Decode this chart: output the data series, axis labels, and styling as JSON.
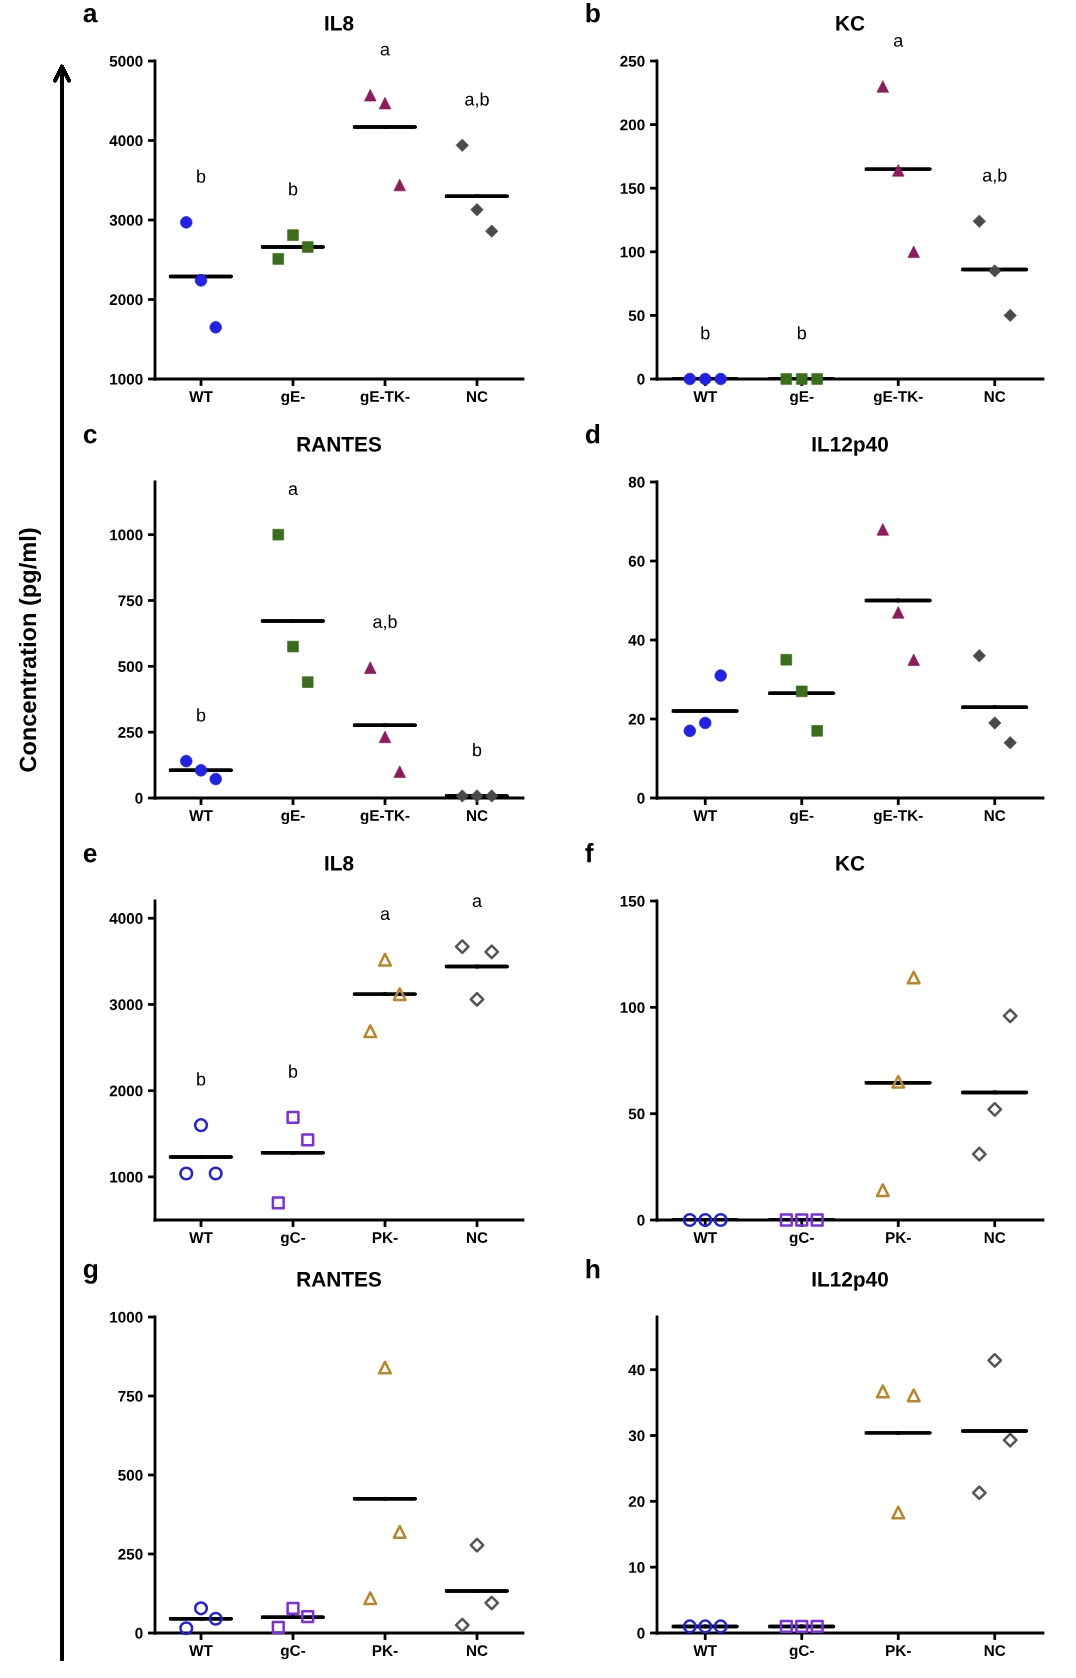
{
  "chart_data": [
    {
      "type": "scatter",
      "title": "IL8",
      "categories": [
        "WT",
        "gE-",
        "gE-TK-",
        "NC"
      ],
      "ylim": [
        1000,
        5000
      ],
      "yticks": [
        1000,
        2000,
        3000,
        4000,
        5000
      ],
      "annotations": [
        "a",
        "b",
        "b",
        "a",
        "a,b"
      ],
      "series": [
        {
          "x": [
            "WT",
            "WT",
            "WT"
          ],
          "values": [
            2970,
            2240,
            1650
          ],
          "color": "#2222e6",
          "marker": "circle"
        },
        {
          "x": [
            "gE-",
            "gE-",
            "gE-"
          ],
          "values": [
            2510,
            2810,
            2660
          ],
          "color": "#3b6e1c",
          "marker": "square"
        },
        {
          "x": [
            "gE-TK-",
            "gE-TK-",
            "gE-TK-"
          ],
          "values": [
            4570,
            4470,
            3440
          ],
          "color": "#8c1c5c",
          "marker": "triangle"
        },
        {
          "x": [
            "NC",
            "NC",
            "NC"
          ],
          "values": [
            3940,
            3130,
            2860
          ],
          "color": "#4a4a4a",
          "marker": "diamond"
        },
        {
          "type": "box",
          "color": "#000000",
          "boxes": [
            {
              "low": 2290,
              "q1": 2290,
              "median": 2290,
              "q3": 2290,
              "high": 2290
            },
            {
              "low": 2660,
              "q1": 2660,
              "median": 2660,
              "q3": 2660,
              "high": 2660
            },
            {
              "low": 4170,
              "q1": 4170,
              "median": 4170,
              "q3": 4170,
              "high": 4170
            },
            {
              "low": 3300,
              "q1": 3300,
              "median": 3300,
              "q3": 3300,
              "high": 3300
            }
          ]
        }
      ]
    },
    {
      "type": "scatter",
      "title": "KC",
      "categories": [
        "WT",
        "gE-",
        "gE-TK-",
        "NC"
      ],
      "ylim": [
        0,
        250
      ],
      "yticks": [
        0,
        50,
        100,
        150,
        200,
        250
      ],
      "annotations": [
        "b",
        "b",
        "b",
        "a",
        "a,b"
      ],
      "series": [
        {
          "x": [
            "WT",
            "WT",
            "WT"
          ],
          "values": [
            0,
            0,
            0
          ],
          "color": "#2222e6",
          "marker": "circle"
        },
        {
          "x": [
            "gE-",
            "gE-",
            "gE-"
          ],
          "values": [
            0,
            0,
            0
          ],
          "color": "#3b6e1c",
          "marker": "square"
        },
        {
          "x": [
            "gE-TK-",
            "gE-TK-",
            "gE-TK-"
          ],
          "values": [
            230,
            164,
            100
          ],
          "color": "#8c1c5c",
          "marker": "triangle"
        },
        {
          "x": [
            "NC",
            "NC",
            "NC"
          ],
          "values": [
            124,
            85,
            50
          ],
          "color": "#4a4a4a",
          "marker": "diamond"
        },
        {
          "type": "box",
          "color": "#000000",
          "boxes": [
            {
              "low": 0,
              "q1": 0,
              "median": 0,
              "q3": 0,
              "high": 0
            },
            {
              "low": 0,
              "q1": 0,
              "median": 0,
              "q3": 0,
              "high": 0
            },
            {
              "low": 165,
              "q1": 165,
              "median": 165,
              "q3": 165,
              "high": 165
            },
            {
              "low": 86,
              "q1": 86,
              "median": 86,
              "q3": 86,
              "high": 86
            }
          ]
        }
      ]
    },
    {
      "type": "scatter",
      "title": "RANTES",
      "ylabel": "Concentration (pg/ml)",
      "categories": [
        "WT",
        "gE-",
        "gE-TK-",
        "NC"
      ],
      "ylim": [
        0,
        1200
      ],
      "yticks": [
        0,
        250,
        500,
        750,
        1000
      ],
      "annotations": [
        "c",
        "b",
        "a",
        "a,b",
        "b"
      ],
      "series": [
        {
          "x": [
            "WT",
            "WT",
            "WT"
          ],
          "values": [
            140,
            105,
            72
          ],
          "color": "#2222e6",
          "marker": "circle"
        },
        {
          "x": [
            "gE-",
            "gE-",
            "gE-"
          ],
          "values": [
            1000,
            575,
            440
          ],
          "color": "#3b6e1c",
          "marker": "square"
        },
        {
          "x": [
            "gE-TK-",
            "gE-TK-",
            "gE-TK-"
          ],
          "values": [
            495,
            232,
            100
          ],
          "color": "#8c1c5c",
          "marker": "triangle"
        },
        {
          "x": [
            "NC",
            "NC",
            "NC"
          ],
          "values": [
            8,
            8,
            8
          ],
          "color": "#4a4a4a",
          "marker": "diamond"
        },
        {
          "type": "box",
          "color": "#000000",
          "boxes": [
            {
              "low": 105,
              "q1": 105,
              "median": 105,
              "q3": 105,
              "high": 105
            },
            {
              "low": 672,
              "q1": 672,
              "median": 672,
              "q3": 672,
              "high": 672
            },
            {
              "low": 276,
              "q1": 276,
              "median": 276,
              "q3": 276,
              "high": 276
            },
            {
              "low": 8,
              "q1": 8,
              "median": 8,
              "q3": 8,
              "high": 8
            }
          ]
        }
      ]
    },
    {
      "type": "scatter",
      "title": "IL12p40",
      "categories": [
        "WT",
        "gE-",
        "gE-TK-",
        "NC"
      ],
      "ylim": [
        0,
        80
      ],
      "yticks": [
        0,
        20,
        40,
        60,
        80
      ],
      "annotations": [
        "d"
      ],
      "series": [
        {
          "x": [
            "WT",
            "WT",
            "WT"
          ],
          "values": [
            17,
            19,
            31
          ],
          "color": "#2222e6",
          "marker": "circle"
        },
        {
          "x": [
            "gE-",
            "gE-",
            "gE-"
          ],
          "values": [
            35,
            27,
            17
          ],
          "color": "#3b6e1c",
          "marker": "square"
        },
        {
          "x": [
            "gE-TK-",
            "gE-TK-",
            "gE-TK-"
          ],
          "values": [
            68,
            47,
            35
          ],
          "color": "#8c1c5c",
          "marker": "triangle"
        },
        {
          "x": [
            "NC",
            "NC",
            "NC"
          ],
          "values": [
            36,
            19,
            14
          ],
          "color": "#4a4a4a",
          "marker": "diamond"
        },
        {
          "type": "box",
          "color": "#000000",
          "boxes": [
            {
              "low": 22,
              "q1": 22,
              "median": 22,
              "q3": 22,
              "high": 22
            },
            {
              "low": 26.5,
              "q1": 26.5,
              "median": 26.5,
              "q3": 26.5,
              "high": 26.5
            },
            {
              "low": 50,
              "q1": 50,
              "median": 50,
              "q3": 50,
              "high": 50
            },
            {
              "low": 23,
              "q1": 23,
              "median": 23,
              "q3": 23,
              "high": 23
            }
          ]
        }
      ]
    },
    {
      "type": "scatter",
      "title": "IL8",
      "categories": [
        "WT",
        "gC-",
        "PK-",
        "NC"
      ],
      "ylim": [
        500,
        4200
      ],
      "yticks": [
        1000,
        2000,
        3000,
        4000
      ],
      "annotations": [
        "e",
        "b",
        "b",
        "a",
        "a"
      ],
      "series": [
        {
          "x": [
            "WT",
            "WT",
            "WT"
          ],
          "values": [
            1040,
            1600,
            1040
          ],
          "color": "#2222dd",
          "marker": "circle"
        },
        {
          "x": [
            "gC-",
            "gC-",
            "gC-"
          ],
          "values": [
            700,
            1690,
            1430
          ],
          "color": "#7b2ee6",
          "marker": "square"
        },
        {
          "x": [
            "PK-",
            "PK-",
            "PK-"
          ],
          "values": [
            2690,
            3520,
            3120
          ],
          "color": "#b8862b",
          "marker": "triangle"
        },
        {
          "x": [
            "NC",
            "NC",
            "NC"
          ],
          "values": [
            3670,
            3060,
            3610
          ],
          "color": "#555555",
          "marker": "diamond"
        },
        {
          "type": "box",
          "color": "#000000",
          "boxes": [
            {
              "low": 1230,
              "q1": 1230,
              "median": 1230,
              "q3": 1230,
              "high": 1230
            },
            {
              "low": 1280,
              "q1": 1280,
              "median": 1280,
              "q3": 1280,
              "high": 1280
            },
            {
              "low": 3120,
              "q1": 3120,
              "median": 3120,
              "q3": 3120,
              "high": 3120
            },
            {
              "low": 3440,
              "q1": 3440,
              "median": 3440,
              "q3": 3440,
              "high": 3440
            }
          ]
        }
      ]
    },
    {
      "type": "scatter",
      "title": "KC",
      "categories": [
        "WT",
        "gC-",
        "PK-",
        "NC"
      ],
      "ylim": [
        0,
        150
      ],
      "yticks": [
        0,
        50,
        100,
        150
      ],
      "annotations": [
        "f"
      ],
      "series": [
        {
          "x": [
            "WT",
            "WT",
            "WT"
          ],
          "values": [
            0,
            0,
            0
          ],
          "color": "#2222dd",
          "marker": "circle"
        },
        {
          "x": [
            "gC-",
            "gC-",
            "gC-"
          ],
          "values": [
            0,
            0,
            0
          ],
          "color": "#7b2ee6",
          "marker": "square"
        },
        {
          "x": [
            "PK-",
            "PK-",
            "PK-"
          ],
          "values": [
            14,
            65,
            114
          ],
          "color": "#b8862b",
          "marker": "triangle"
        },
        {
          "x": [
            "NC",
            "NC",
            "NC"
          ],
          "values": [
            31,
            52,
            96
          ],
          "color": "#555555",
          "marker": "diamond"
        },
        {
          "type": "box",
          "color": "#000000",
          "boxes": [
            {
              "low": 0,
              "q1": 0,
              "median": 0,
              "q3": 0,
              "high": 0
            },
            {
              "low": 0,
              "q1": 0,
              "median": 0,
              "q3": 0,
              "high": 0
            },
            {
              "low": 64.5,
              "q1": 64.5,
              "median": 64.5,
              "q3": 64.5,
              "high": 64.5
            },
            {
              "low": 60,
              "q1": 60,
              "median": 60,
              "q3": 60,
              "high": 60
            }
          ]
        }
      ]
    },
    {
      "type": "scatter",
      "title": "RANTES",
      "categories": [
        "WT",
        "gC-",
        "PK-",
        "NC"
      ],
      "ylim": [
        0,
        1000
      ],
      "yticks": [
        0,
        250,
        500,
        750,
        1000
      ],
      "annotations": [
        "g"
      ],
      "series": [
        {
          "x": [
            "WT",
            "WT",
            "WT"
          ],
          "values": [
            15,
            78,
            45
          ],
          "color": "#2222dd",
          "marker": "circle"
        },
        {
          "x": [
            "gC-",
            "gC-",
            "gC-"
          ],
          "values": [
            18,
            78,
            52
          ],
          "color": "#7b2ee6",
          "marker": "square"
        },
        {
          "x": [
            "PK-",
            "PK-",
            "PK-"
          ],
          "values": [
            110,
            840,
            320
          ],
          "color": "#b8862b",
          "marker": "triangle"
        },
        {
          "x": [
            "NC",
            "NC",
            "NC"
          ],
          "values": [
            25,
            278,
            95
          ],
          "color": "#555555",
          "marker": "diamond"
        },
        {
          "type": "box",
          "color": "#000000",
          "boxes": [
            {
              "low": 45,
              "q1": 45,
              "median": 45,
              "q3": 45,
              "high": 45
            },
            {
              "low": 50,
              "q1": 50,
              "median": 50,
              "q3": 50,
              "high": 50
            },
            {
              "low": 425,
              "q1": 425,
              "median": 425,
              "q3": 425,
              "high": 425
            },
            {
              "low": 133,
              "q1": 133,
              "median": 133,
              "q3": 133,
              "high": 133
            }
          ]
        }
      ]
    },
    {
      "type": "scatter",
      "title": "IL12p40",
      "categories": [
        "WT",
        "gC-",
        "PK-",
        "NC"
      ],
      "ylim": [
        0,
        48
      ],
      "yticks": [
        0,
        10,
        20,
        30,
        40
      ],
      "annotations": [
        "h"
      ],
      "series": [
        {
          "x": [
            "WT",
            "WT",
            "WT"
          ],
          "values": [
            1,
            1,
            1
          ],
          "color": "#2222dd",
          "marker": "circle"
        },
        {
          "x": [
            "gC-",
            "gC-",
            "gC-"
          ],
          "values": [
            1,
            1,
            1
          ],
          "color": "#7b2ee6",
          "marker": "square"
        },
        {
          "x": [
            "PK-",
            "PK-",
            "PK-"
          ],
          "values": [
            36.7,
            18.3,
            36.1
          ],
          "color": "#b8862b",
          "marker": "triangle"
        },
        {
          "x": [
            "NC",
            "NC",
            "NC"
          ],
          "values": [
            21.3,
            41.4,
            29.3
          ],
          "color": "#555555",
          "marker": "diamond"
        },
        {
          "type": "box",
          "color": "#000000",
          "boxes": [
            {
              "low": 1,
              "q1": 1,
              "median": 1,
              "q3": 1,
              "high": 1
            },
            {
              "low": 1,
              "q1": 1,
              "median": 1,
              "q3": 1,
              "high": 1
            },
            {
              "low": 30.4,
              "q1": 30.4,
              "median": 30.4,
              "q3": 30.4,
              "high": 30.4
            },
            {
              "low": 30.7,
              "q1": 30.7,
              "median": 30.7,
              "q3": 30.7,
              "high": 30.7
            }
          ]
        }
      ]
    }
  ]
}
